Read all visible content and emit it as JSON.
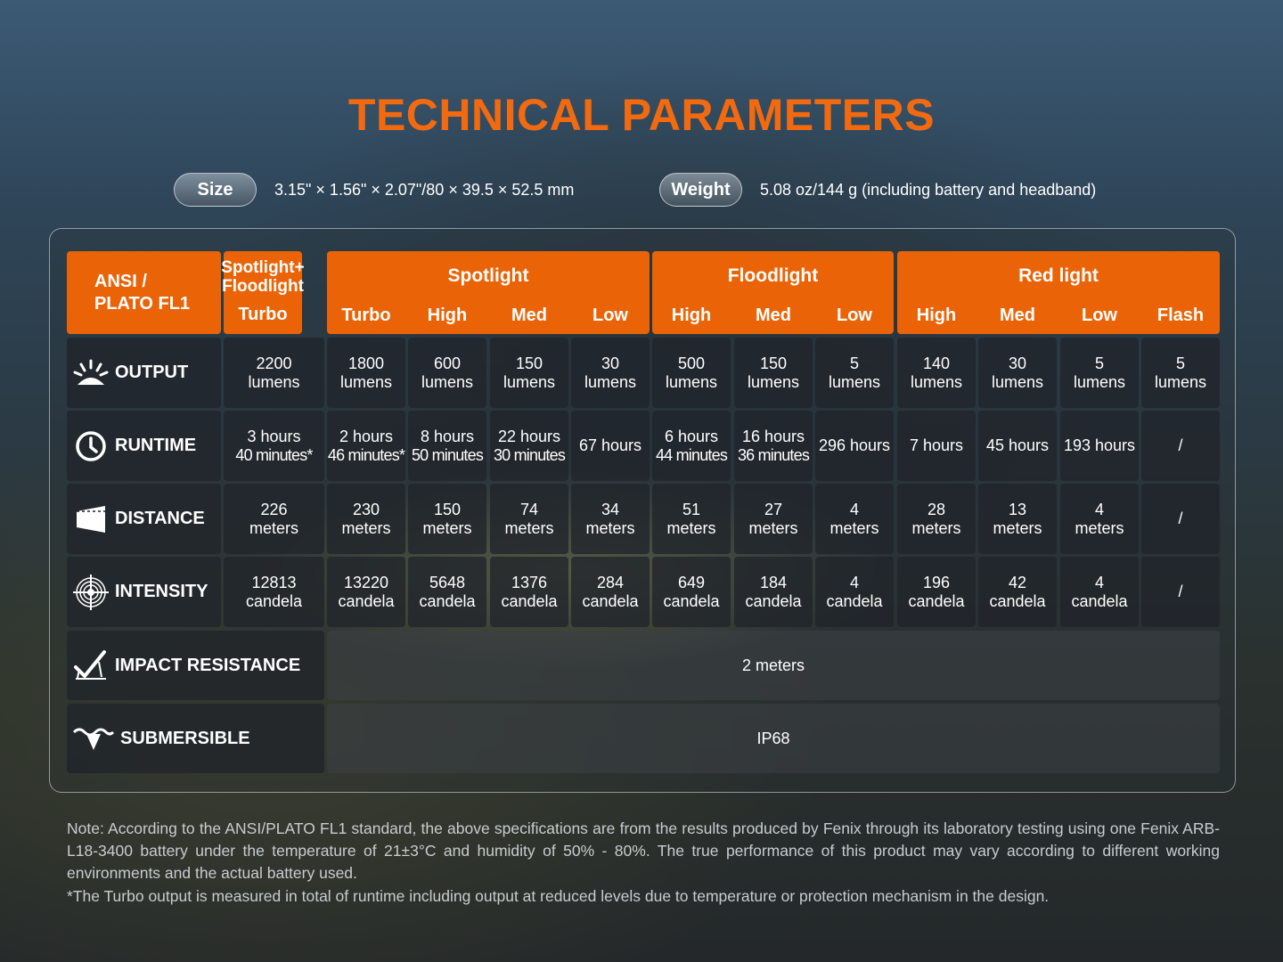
{
  "title": "TECHNICAL PARAMETERS",
  "size": {
    "label": "Size",
    "value": "3.15\" × 1.56\" × 2.07\"/80 × 39.5 × 52.5 mm"
  },
  "weight": {
    "label": "Weight",
    "value": "5.08 oz/144 g (including battery and headband)"
  },
  "table": {
    "corner": [
      "ANSI /",
      "PLATO FL1"
    ],
    "groups": [
      {
        "name": "Spotlight+ Floodlight",
        "modes": [
          "Turbo"
        ]
      },
      {
        "name": "Spotlight",
        "modes": [
          "Turbo",
          "High",
          "Med",
          "Low"
        ]
      },
      {
        "name": "Floodlight",
        "modes": [
          "High",
          "Med",
          "Low"
        ]
      },
      {
        "name": "Red light",
        "modes": [
          "High",
          "Med",
          "Low",
          "Flash"
        ]
      }
    ],
    "rows": [
      {
        "label": "OUTPUT",
        "icon": "sunburst-icon",
        "cells": [
          [
            "2200",
            "lumens"
          ],
          [
            "1800",
            "lumens"
          ],
          [
            "600",
            "lumens"
          ],
          [
            "150",
            "lumens"
          ],
          [
            "30",
            "lumens"
          ],
          [
            "500",
            "lumens"
          ],
          [
            "150",
            "lumens"
          ],
          [
            "5",
            "lumens"
          ],
          [
            "140",
            "lumens"
          ],
          [
            "30",
            "lumens"
          ],
          [
            "5",
            "lumens"
          ],
          [
            "5",
            "lumens"
          ]
        ]
      },
      {
        "label": "RUNTIME",
        "icon": "clock-icon",
        "cells": [
          [
            "3 hours",
            "40 minutes*"
          ],
          [
            "2 hours",
            "46 minutes*"
          ],
          [
            "8 hours",
            "50 minutes"
          ],
          [
            "22 hours",
            "30 minutes"
          ],
          [
            "67 hours"
          ],
          [
            "6 hours",
            "44 minutes"
          ],
          [
            "16 hours",
            "36 minutes"
          ],
          [
            "296 hours"
          ],
          [
            "7 hours"
          ],
          [
            "45 hours"
          ],
          [
            "193 hours"
          ],
          [
            "/"
          ]
        ]
      },
      {
        "label": "DISTANCE",
        "icon": "distance-beam-icon",
        "cells": [
          [
            "226",
            "meters"
          ],
          [
            "230",
            "meters"
          ],
          [
            "150",
            "meters"
          ],
          [
            "74",
            "meters"
          ],
          [
            "34",
            "meters"
          ],
          [
            "51",
            "meters"
          ],
          [
            "27",
            "meters"
          ],
          [
            "4",
            "meters"
          ],
          [
            "28",
            "meters"
          ],
          [
            "13",
            "meters"
          ],
          [
            "4",
            "meters"
          ],
          [
            "/"
          ]
        ]
      },
      {
        "label": "INTENSITY",
        "icon": "target-icon",
        "cells": [
          [
            "12813",
            "candela"
          ],
          [
            "13220",
            "candela"
          ],
          [
            "5648",
            "candela"
          ],
          [
            "1376",
            "candela"
          ],
          [
            "284",
            "candela"
          ],
          [
            "649",
            "candela"
          ],
          [
            "184",
            "candela"
          ],
          [
            "4",
            "candela"
          ],
          [
            "196",
            "candela"
          ],
          [
            "42",
            "candela"
          ],
          [
            "4",
            "candela"
          ],
          [
            "/"
          ]
        ]
      }
    ],
    "impact": {
      "label": "IMPACT RESISTANCE",
      "icon": "impact-icon",
      "value": "2 meters"
    },
    "submersible": {
      "label": "SUBMERSIBLE",
      "icon": "water-drop-icon",
      "value": "IP68"
    }
  },
  "note": "Note: According to the ANSI/PLATO FL1 standard, the above specifications are from the results produced by Fenix through its laboratory testing using one Fenix ARB-L18-3400 battery under the temperature of 21±3°C and humidity of 50% - 80%. The true performance of this product may vary according to different working environments and the actual battery used.",
  "footnote": "*The Turbo output is measured in total of runtime including output at reduced levels due to temperature or protection mechanism in the design."
}
